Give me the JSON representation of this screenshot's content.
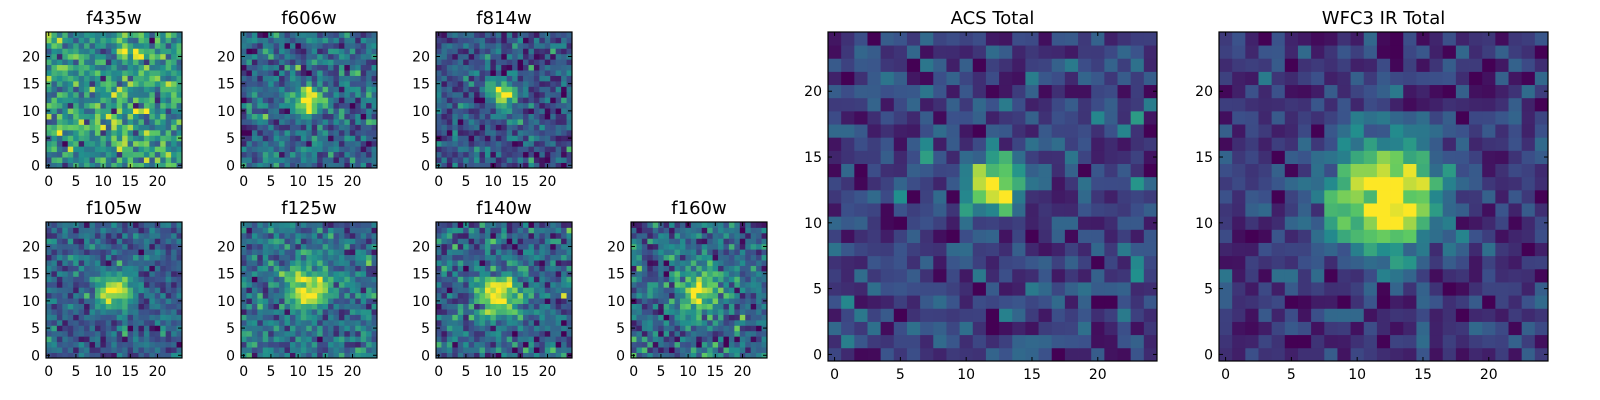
{
  "chart_data": [
    {
      "type": "heatmap",
      "title": "f435w",
      "xlim": [
        0,
        25
      ],
      "ylim": [
        0,
        25
      ],
      "xticks": [
        0,
        5,
        10,
        15,
        20
      ],
      "yticks": [
        0,
        5,
        10,
        15,
        20
      ],
      "source_peak": [
        12,
        12
      ],
      "peak_strength": 0.05,
      "sigma": 3.0,
      "noise": 0.9,
      "seed": 11
    },
    {
      "type": "heatmap",
      "title": "f606w",
      "xlim": [
        0,
        25
      ],
      "ylim": [
        0,
        25
      ],
      "xticks": [
        0,
        5,
        10,
        15,
        20
      ],
      "yticks": [
        0,
        5,
        10,
        15,
        20
      ],
      "source_peak": [
        12,
        12
      ],
      "peak_strength": 1.2,
      "sigma": 1.6,
      "noise": 0.75,
      "seed": 23
    },
    {
      "type": "heatmap",
      "title": "f814w",
      "xlim": [
        0,
        25
      ],
      "ylim": [
        0,
        25
      ],
      "xticks": [
        0,
        5,
        10,
        15,
        20
      ],
      "yticks": [
        0,
        5,
        10,
        15,
        20
      ],
      "source_peak": [
        12,
        13
      ],
      "peak_strength": 1.3,
      "sigma": 1.6,
      "noise": 0.75,
      "seed": 37
    },
    {
      "type": "heatmap",
      "title": "f105w",
      "xlim": [
        0,
        25
      ],
      "ylim": [
        0,
        25
      ],
      "xticks": [
        0,
        5,
        10,
        15,
        20
      ],
      "yticks": [
        0,
        5,
        10,
        15,
        20
      ],
      "source_peak": [
        12,
        12
      ],
      "peak_strength": 1.1,
      "sigma": 2.4,
      "noise": 0.6,
      "seed": 41
    },
    {
      "type": "heatmap",
      "title": "f125w",
      "xlim": [
        0,
        25
      ],
      "ylim": [
        0,
        25
      ],
      "xticks": [
        0,
        5,
        10,
        15,
        20
      ],
      "yticks": [
        0,
        5,
        10,
        15,
        20
      ],
      "source_peak": [
        12,
        12
      ],
      "peak_strength": 1.0,
      "sigma": 2.6,
      "noise": 0.6,
      "seed": 53
    },
    {
      "type": "heatmap",
      "title": "f140w",
      "xlim": [
        0,
        25
      ],
      "ylim": [
        0,
        25
      ],
      "xticks": [
        0,
        5,
        10,
        15,
        20
      ],
      "yticks": [
        0,
        5,
        10,
        15,
        20
      ],
      "source_peak": [
        11,
        11
      ],
      "peak_strength": 1.0,
      "sigma": 2.8,
      "noise": 0.65,
      "seed": 67
    },
    {
      "type": "heatmap",
      "title": "f160w",
      "xlim": [
        0,
        25
      ],
      "ylim": [
        0,
        25
      ],
      "xticks": [
        0,
        5,
        10,
        15,
        20
      ],
      "yticks": [
        0,
        5,
        10,
        15,
        20
      ],
      "source_peak": [
        12,
        12
      ],
      "peak_strength": 0.9,
      "sigma": 2.8,
      "noise": 0.7,
      "seed": 79
    },
    {
      "type": "heatmap",
      "title": "ACS Total",
      "xlim": [
        0,
        25
      ],
      "ylim": [
        0,
        25
      ],
      "xticks": [
        0,
        5,
        10,
        15,
        20
      ],
      "yticks": [
        0,
        5,
        10,
        15,
        20
      ],
      "source_peak": [
        12,
        13
      ],
      "peak_strength": 1.6,
      "sigma": 1.4,
      "noise": 0.55,
      "seed": 97
    },
    {
      "type": "heatmap",
      "title": "WFC3 IR Total",
      "xlim": [
        0,
        25
      ],
      "ylim": [
        0,
        25
      ],
      "xticks": [
        0,
        5,
        10,
        15,
        20
      ],
      "yticks": [
        0,
        5,
        10,
        15,
        20
      ],
      "source_peak": [
        12,
        12
      ],
      "peak_strength": 1.3,
      "sigma": 3.0,
      "noise": 0.4,
      "seed": 113
    }
  ],
  "colormap": [
    "#440154",
    "#3b528b",
    "#21908d",
    "#5dc963",
    "#fde725"
  ]
}
